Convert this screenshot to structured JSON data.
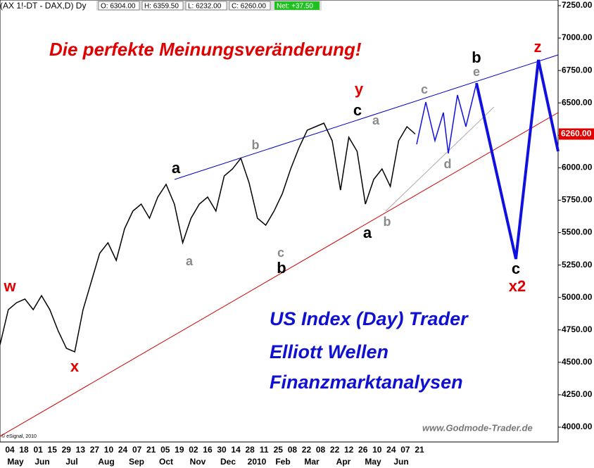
{
  "chart_data": {
    "type": "line",
    "header": {
      "symbol": "(AX 1!-DT - DAX,D) Dy",
      "open": "O: 6304.00",
      "high": "H: 6359.50",
      "low": "L: 6232.00",
      "close": "C: 6260.00",
      "net": "Net: +37.50"
    },
    "title": "Die perfekte Meinungsveränderung!",
    "texts": [
      "US Index (Day) Trader",
      "Elliott Wellen",
      "Finanzmarktanalysen"
    ],
    "source": "www.Godmode-Trader.de",
    "copyright": "© eSignal, 2010",
    "wave_labels": [
      "w",
      "x",
      "y",
      "z",
      "x2",
      "a",
      "b",
      "c",
      "a",
      "b",
      "c",
      "a",
      "b",
      "c",
      "a",
      "b",
      "c",
      "d",
      "e"
    ],
    "color": "#000000",
    "values": [
      4635,
      4906,
      4960,
      4988,
      4906,
      5014,
      4906,
      4743,
      4608,
      4581,
      4906,
      5123,
      5340,
      5422,
      5286,
      5530,
      5666,
      5720,
      5611,
      5774,
      5872,
      5720,
      5422,
      5611,
      5720,
      5774,
      5666,
      5937,
      5991,
      6073,
      5883,
      5611,
      5557,
      5666,
      5801,
      5991,
      6154,
      6290,
      6317,
      6344,
      6208,
      5828,
      6235,
      6127,
      5720,
      5910,
      5991,
      5856,
      6208,
      6317,
      6260
    ],
    "last_price": {
      "value": 6260,
      "label": "6260.00"
    },
    "ylim": [
      4000,
      7250
    ],
    "yticks": [
      {
        "value": 4000,
        "label": "4000.00"
      },
      {
        "value": 4250,
        "label": "4250.00"
      },
      {
        "value": 4500,
        "label": "4500.00"
      },
      {
        "value": 4750,
        "label": "4750.00"
      },
      {
        "value": 5000,
        "label": "5000.00"
      },
      {
        "value": 5250,
        "label": "5250.00"
      },
      {
        "value": 5500,
        "label": "5500.00"
      },
      {
        "value": 5750,
        "label": "5750.00"
      },
      {
        "value": 6000,
        "label": "6000.00"
      },
      {
        "value": 6250,
        "label": "6250.00"
      },
      {
        "value": 6500,
        "label": "6500.00"
      },
      {
        "value": 6750,
        "label": "6750.00"
      },
      {
        "value": 7000,
        "label": "7000.00"
      },
      {
        "value": 7250,
        "label": "7250.00"
      }
    ],
    "date_labels": [
      "04",
      "18",
      "01",
      "15",
      "29",
      "13",
      "27",
      "10",
      "24",
      "07",
      "21",
      "05",
      "19",
      "02",
      "16",
      "30",
      "14",
      "28",
      "11",
      "25",
      "08",
      "22",
      "08",
      "22",
      "12",
      "26",
      "10",
      "24",
      "07",
      "21"
    ],
    "month_labels": [
      "May",
      "Jun",
      "Jul",
      "Aug",
      "Sep",
      "Oct",
      "Nov",
      "Dec",
      "2010",
      "Feb",
      "Mar",
      "Apr",
      "May",
      "Jun"
    ]
  }
}
